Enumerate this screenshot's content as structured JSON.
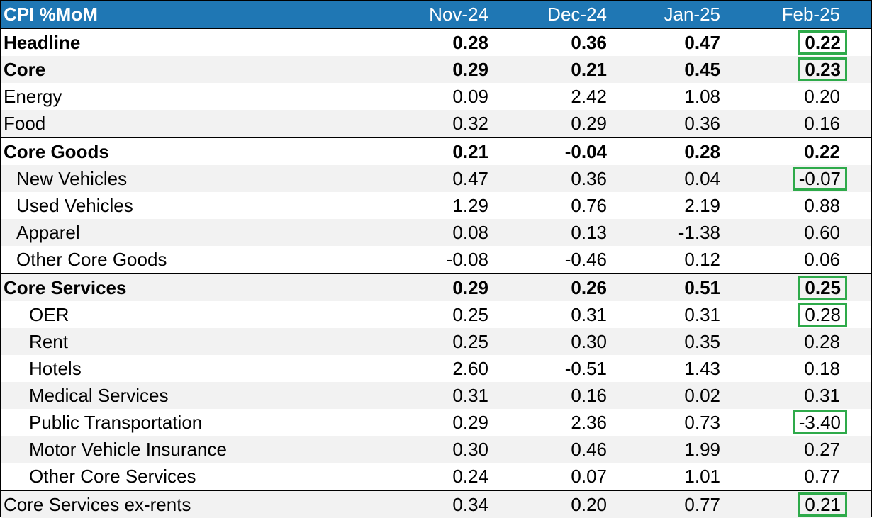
{
  "table": {
    "header": {
      "title": "CPI %MoM",
      "months": [
        "Nov-24",
        "Dec-24",
        "Jan-25",
        "Feb-25"
      ]
    },
    "rows": [
      {
        "label": "Headline",
        "values": [
          "0.28",
          "0.36",
          "0.47",
          "0.22"
        ],
        "bold": true,
        "highlight_last": true
      },
      {
        "label": "Core",
        "values": [
          "0.29",
          "0.21",
          "0.45",
          "0.23"
        ],
        "bold": true,
        "highlight_last": true
      },
      {
        "label": "Energy",
        "values": [
          "0.09",
          "2.42",
          "1.08",
          "0.20"
        ]
      },
      {
        "label": "Food",
        "values": [
          "0.32",
          "0.29",
          "0.36",
          "0.16"
        ]
      },
      {
        "label": "Core Goods",
        "values": [
          "0.21",
          "-0.04",
          "0.28",
          "0.22"
        ],
        "bold": true
      },
      {
        "label": "New Vehicles",
        "values": [
          "0.47",
          "0.36",
          "0.04",
          "-0.07"
        ],
        "highlight_last": true
      },
      {
        "label": "Used Vehicles",
        "values": [
          "1.29",
          "0.76",
          "2.19",
          "0.88"
        ]
      },
      {
        "label": "Apparel",
        "values": [
          "0.08",
          "0.13",
          "-1.38",
          "0.60"
        ]
      },
      {
        "label": "Other Core Goods",
        "values": [
          "-0.08",
          "-0.46",
          "0.12",
          "0.06"
        ]
      },
      {
        "label": "Core Services",
        "values": [
          "0.29",
          "0.26",
          "0.51",
          "0.25"
        ],
        "bold": true,
        "highlight_last": true
      },
      {
        "label": "OER",
        "values": [
          "0.25",
          "0.31",
          "0.31",
          "0.28"
        ],
        "highlight_last": true
      },
      {
        "label": "Rent",
        "values": [
          "0.25",
          "0.30",
          "0.35",
          "0.28"
        ]
      },
      {
        "label": "Hotels",
        "values": [
          "2.60",
          "-0.51",
          "1.43",
          "0.18"
        ]
      },
      {
        "label": "Medical Services",
        "values": [
          "0.31",
          "0.16",
          "0.02",
          "0.31"
        ]
      },
      {
        "label": "Public Transportation",
        "values": [
          "0.29",
          "2.36",
          "0.73",
          "-3.40"
        ],
        "highlight_last": true
      },
      {
        "label": "Motor Vehicle Insurance",
        "values": [
          "0.30",
          "0.46",
          "1.99",
          "0.27"
        ]
      },
      {
        "label": "Other Core Services",
        "values": [
          "0.24",
          "0.07",
          "1.01",
          "0.77"
        ]
      },
      {
        "label": "Core Services ex-rents",
        "values": [
          "0.34",
          "0.20",
          "0.77",
          "0.21"
        ],
        "highlight_last": true
      }
    ]
  },
  "colors": {
    "header_bg": "#1f77b4",
    "highlight_box": "#2eaa4a",
    "row_shade": "#f2f2f2"
  }
}
